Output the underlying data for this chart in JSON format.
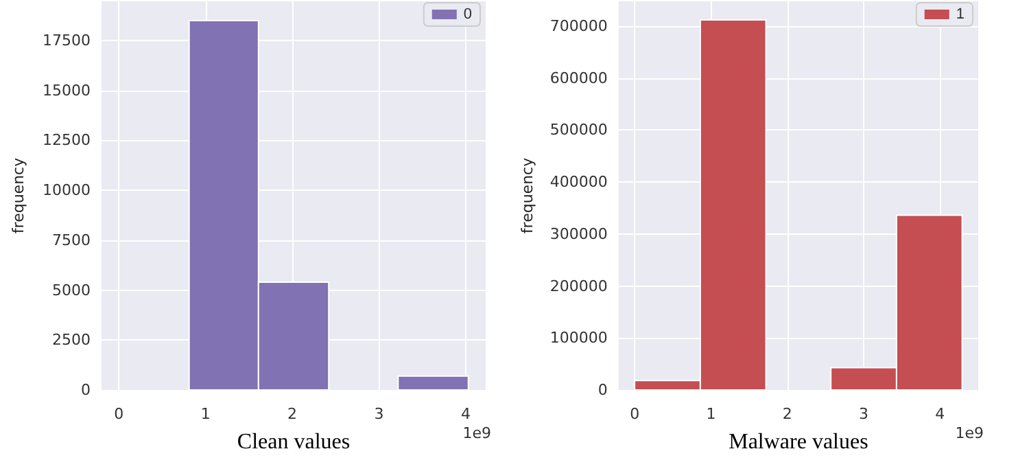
{
  "chart_data": [
    {
      "type": "histogram",
      "xlabel": "Clean values",
      "ylabel": "frequency",
      "annotations": [
        "1e9"
      ],
      "bins": [
        0.81,
        1.61,
        2.42,
        3.22,
        4.03
      ],
      "series": [
        {
          "name": "0",
          "color": "#8172b3",
          "values": [
            18500,
            5400,
            0,
            700
          ]
        }
      ],
      "xlim": [
        -0.2,
        4.23
      ],
      "xticks": [
        0,
        1,
        2,
        3,
        4
      ],
      "ylim": [
        0,
        19460
      ],
      "yticks": [
        0,
        2500,
        5000,
        7500,
        10000,
        12500,
        15000,
        17500
      ],
      "grid": true,
      "legend": "top right"
    },
    {
      "type": "histogram",
      "xlabel": "Malware values",
      "ylabel": "frequency",
      "annotations": [
        "1e9"
      ],
      "bins": [
        0,
        0.86,
        1.72,
        2.57,
        3.43,
        4.29
      ],
      "series": [
        {
          "name": "1",
          "color": "#c44e52",
          "values": [
            18000,
            712000,
            0,
            43000,
            336000
          ]
        }
      ],
      "xlim": [
        -0.21,
        4.5
      ],
      "xticks": [
        0,
        1,
        2,
        3,
        4
      ],
      "ylim": [
        0,
        747600
      ],
      "yticks": [
        0,
        100000,
        200000,
        300000,
        400000,
        500000,
        600000,
        700000
      ],
      "grid": true,
      "legend": "top right"
    }
  ]
}
